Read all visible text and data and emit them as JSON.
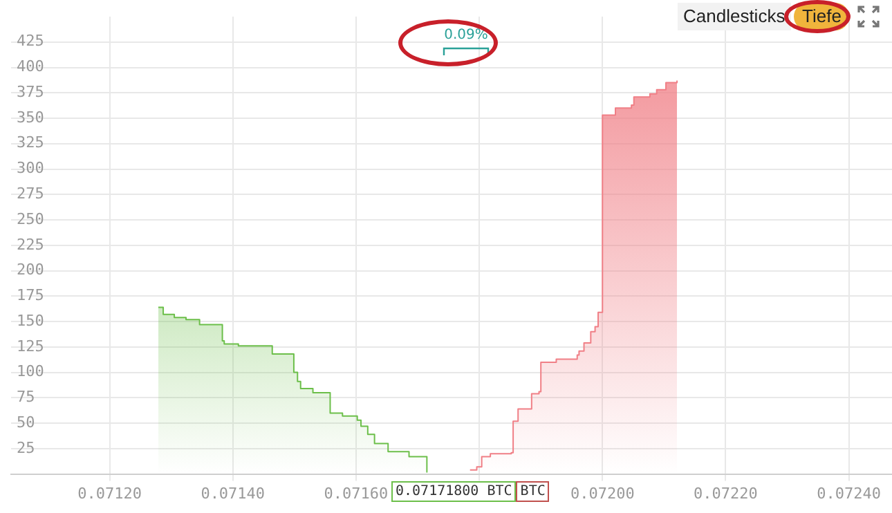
{
  "chart_data": {
    "type": "area",
    "xlim": [
      0.07104,
      0.07247
    ],
    "ylim": [
      0,
      450
    ],
    "xticks": [
      {
        "value": 0.0712,
        "label": "0.07120"
      },
      {
        "value": 0.0714,
        "label": "0.07140"
      },
      {
        "value": 0.0716,
        "label": "0.07160"
      },
      {
        "value": 0.0718,
        "label": null
      },
      {
        "value": 0.072,
        "label": "0.07200"
      },
      {
        "value": 0.0722,
        "label": "0.07220"
      },
      {
        "value": 0.0724,
        "label": "0.07240"
      }
    ],
    "yticks": [
      25,
      50,
      75,
      100,
      125,
      150,
      175,
      200,
      225,
      250,
      275,
      300,
      325,
      350,
      375,
      400,
      425
    ],
    "grid": true,
    "legend": false,
    "marker": "none",
    "line_style": "solid",
    "series": [
      {
        "color": "#6cbf4a",
        "x": [
          0.071279,
          0.071287,
          0.071287,
          0.071305,
          0.071305,
          0.071324,
          0.071324,
          0.071346,
          0.071346,
          0.071383,
          0.071383,
          0.071386,
          0.071386,
          0.071409,
          0.071409,
          0.071464,
          0.071464,
          0.071499,
          0.071499,
          0.071505,
          0.071505,
          0.07151,
          0.07151,
          0.07153,
          0.07153,
          0.071558,
          0.071558,
          0.071578,
          0.071578,
          0.071602,
          0.071602,
          0.071608,
          0.071608,
          0.071619,
          0.071619,
          0.07163,
          0.07163,
          0.071652,
          0.071652,
          0.071686,
          0.071686,
          0.071715,
          0.071715
        ],
        "values": [
          164,
          164,
          157,
          157,
          154,
          154,
          152,
          152,
          147,
          147,
          131,
          131,
          128,
          128,
          126,
          126,
          118,
          118,
          100,
          100,
          91,
          91,
          84,
          84,
          80,
          80,
          60,
          60,
          57,
          57,
          53,
          53,
          47,
          47,
          39,
          39,
          30,
          30,
          22,
          22,
          17,
          17,
          2
        ]
      },
      {
        "color": "#f07f86",
        "x": [
          0.071785,
          0.071796,
          0.071796,
          0.071804,
          0.071804,
          0.071818,
          0.071818,
          0.071852,
          0.071852,
          0.071855,
          0.071855,
          0.071863,
          0.071863,
          0.071885,
          0.071885,
          0.071897,
          0.071897,
          0.0719,
          0.0719,
          0.071925,
          0.071925,
          0.071959,
          0.071959,
          0.071962,
          0.071962,
          0.07197,
          0.07197,
          0.071981,
          0.071981,
          0.071988,
          0.071988,
          0.071993,
          0.071993,
          0.072,
          0.072,
          0.072021,
          0.072021,
          0.072047,
          0.072047,
          0.072051,
          0.072051,
          0.072077,
          0.072077,
          0.072088,
          0.072088,
          0.072103,
          0.072103,
          0.072121,
          0.072121
        ],
        "values": [
          4,
          4,
          7,
          7,
          17,
          17,
          20,
          20,
          21,
          21,
          52,
          52,
          64,
          64,
          79,
          79,
          81,
          81,
          110,
          110,
          113,
          113,
          117,
          117,
          121,
          121,
          129,
          129,
          140,
          140,
          145,
          145,
          159,
          159,
          353,
          353,
          360,
          360,
          363,
          363,
          371,
          371,
          374,
          374,
          378,
          378,
          385,
          385,
          387
        ]
      }
    ],
    "annotations": [
      "Candlesticks",
      "Tiefe",
      "0.09%",
      "0.07171800 BTC",
      "BTC"
    ]
  }
}
